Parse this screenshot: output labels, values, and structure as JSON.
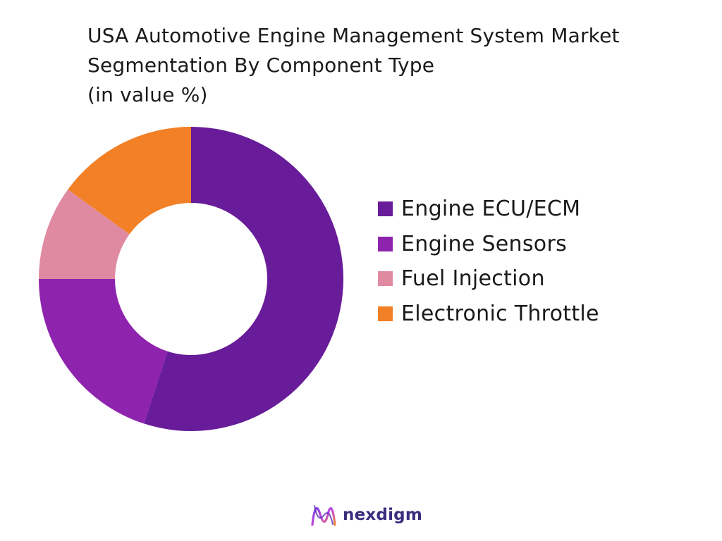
{
  "chart_data": {
    "type": "donut",
    "title_lines": [
      "USA Automotive Engine Management System Market",
      "Segmentation By Component Type",
      "(in value %)"
    ],
    "categories": [
      "Engine ECU/ECM",
      "Engine Sensors",
      "Fuel Injection",
      "Electronic Throttle"
    ],
    "values": [
      55,
      20,
      10,
      15
    ],
    "unit": "%",
    "colors": [
      "#681C99",
      "#8E23AD",
      "#E08AA1",
      "#F28026"
    ],
    "legend_position": "right"
  },
  "brand": {
    "name": "nexdigm",
    "logo_icon": "nexdigm-logo-icon"
  }
}
